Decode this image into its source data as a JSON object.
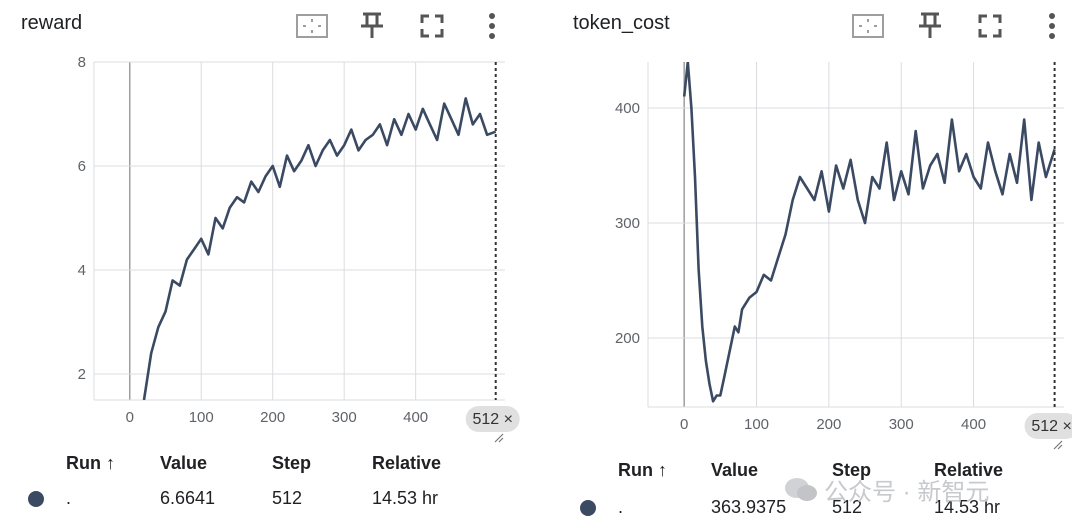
{
  "colors": {
    "series": "#3b4a63",
    "grid": "#dadce0",
    "axis": "#9e9e9e"
  },
  "toolbar_icons": [
    "fit-domain-icon",
    "pin-icon",
    "fullscreen-icon",
    "more-vert-icon"
  ],
  "table_headers": {
    "run": "Run ↑",
    "value": "Value",
    "step": "Step",
    "relative": "Relative"
  },
  "watermark": "公众号 · 新智元",
  "charts": [
    {
      "title": "reward",
      "step_badge": "512 ×",
      "table": {
        "run": ".",
        "value": "6.6641",
        "step": "512",
        "relative": "14.53 hr"
      }
    },
    {
      "title": "token_cost",
      "step_badge": "512 ×",
      "table": {
        "run": ".",
        "value": "363.9375",
        "step": "512",
        "relative": "14.53 hr"
      }
    }
  ],
  "chart_data": [
    {
      "type": "line",
      "title": "reward",
      "xlim": [
        -50,
        525
      ],
      "ylim": [
        1.5,
        8.0
      ],
      "xticks": [
        0,
        100,
        200,
        300,
        400
      ],
      "yticks": [
        2,
        4,
        6,
        8
      ],
      "grid": true,
      "cursor_x": 512,
      "series": [
        {
          "x": [
            20,
            30,
            40,
            50,
            60,
            70,
            80,
            90,
            100,
            110,
            120,
            130,
            140,
            150,
            160,
            170,
            180,
            190,
            200,
            210,
            220,
            230,
            240,
            250,
            260,
            270,
            280,
            290,
            300,
            310,
            320,
            330,
            340,
            350,
            360,
            370,
            380,
            390,
            400,
            410,
            420,
            430,
            440,
            450,
            460,
            470,
            480,
            490,
            500,
            512
          ],
          "y": [
            1.5,
            2.4,
            2.9,
            3.2,
            3.8,
            3.7,
            4.2,
            4.4,
            4.6,
            4.3,
            5.0,
            4.8,
            5.2,
            5.4,
            5.3,
            5.7,
            5.5,
            5.8,
            6.0,
            5.6,
            6.2,
            5.9,
            6.1,
            6.4,
            6.0,
            6.3,
            6.5,
            6.2,
            6.4,
            6.7,
            6.3,
            6.5,
            6.6,
            6.8,
            6.4,
            6.9,
            6.6,
            7.0,
            6.7,
            7.1,
            6.8,
            6.5,
            7.2,
            6.9,
            6.6,
            7.3,
            6.8,
            7.0,
            6.6,
            6.66
          ]
        }
      ]
    },
    {
      "type": "line",
      "title": "token_cost",
      "xlim": [
        -50,
        525
      ],
      "ylim": [
        140,
        440
      ],
      "xticks": [
        0,
        100,
        200,
        300,
        400
      ],
      "yticks": [
        200,
        300,
        400
      ],
      "grid": true,
      "cursor_x": 512,
      "series": [
        {
          "x": [
            0,
            5,
            10,
            15,
            20,
            25,
            30,
            35,
            40,
            45,
            50,
            55,
            60,
            65,
            70,
            75,
            80,
            90,
            100,
            110,
            120,
            130,
            140,
            150,
            160,
            170,
            180,
            190,
            200,
            210,
            220,
            230,
            240,
            250,
            260,
            270,
            280,
            290,
            300,
            310,
            320,
            330,
            340,
            350,
            360,
            370,
            380,
            390,
            400,
            410,
            420,
            430,
            440,
            450,
            460,
            470,
            480,
            490,
            500,
            512
          ],
          "y": [
            410,
            440,
            400,
            340,
            260,
            210,
            180,
            160,
            145,
            150,
            150,
            165,
            180,
            195,
            210,
            205,
            225,
            235,
            240,
            255,
            250,
            270,
            290,
            320,
            340,
            330,
            320,
            345,
            310,
            350,
            330,
            355,
            320,
            300,
            340,
            330,
            370,
            320,
            345,
            325,
            380,
            330,
            350,
            360,
            335,
            390,
            345,
            360,
            340,
            330,
            370,
            345,
            325,
            360,
            335,
            390,
            320,
            370,
            340,
            364
          ]
        }
      ]
    }
  ]
}
